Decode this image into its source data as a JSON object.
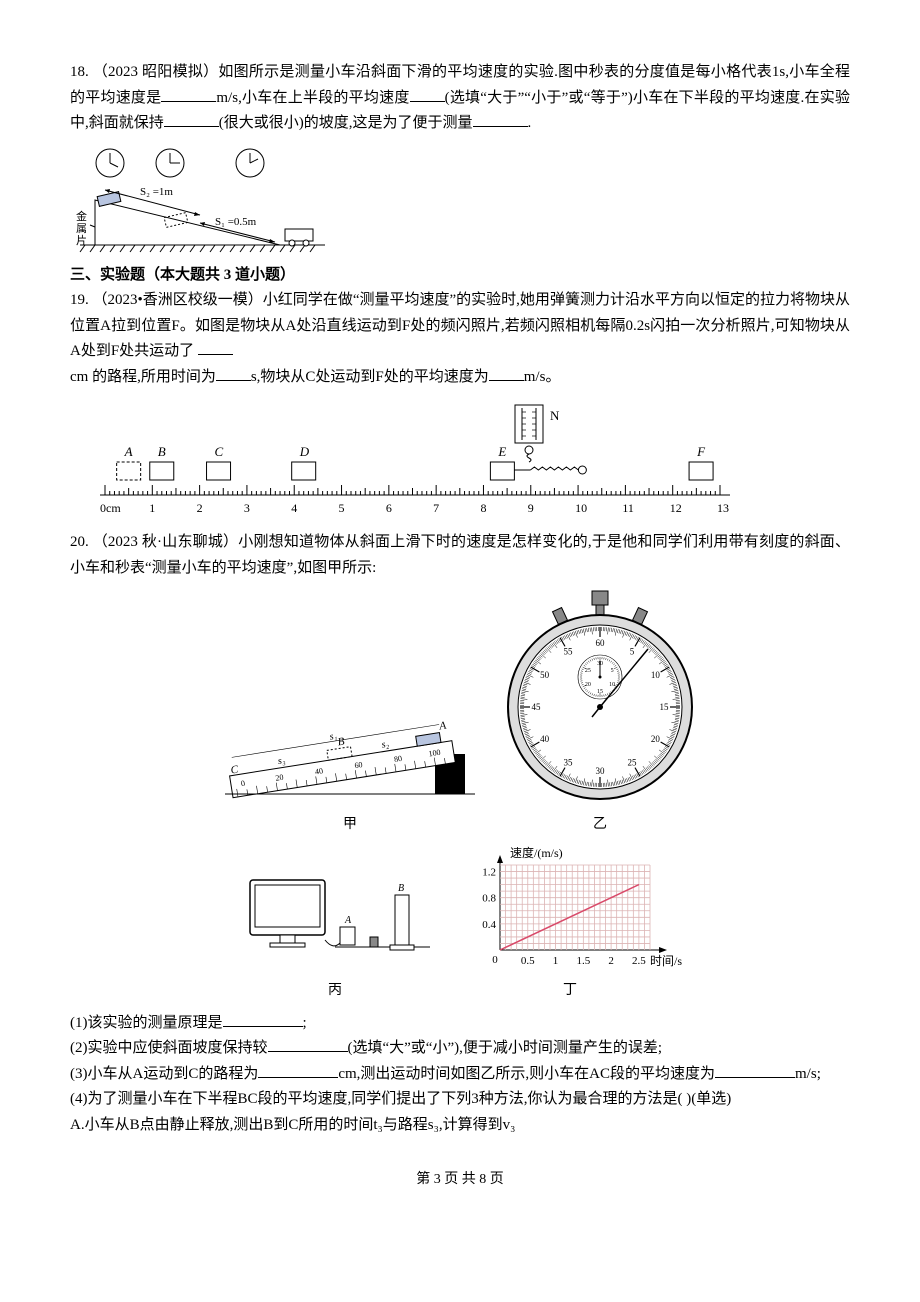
{
  "q18": {
    "num": "18. ",
    "text_a": "（2023 昭阳模拟）如图所示是测量小车沿斜面下滑的平均速度的实验.图中秒表的分度值是每小格代表1s,小车全程的平均速度是",
    "unit1": "m/s,小车在上半段的平均速度",
    "text_b": "(选填“大于”“小于”或“等于”)小车在下半段的平均速度.在实验中,斜面就保持",
    "text_c": "(很大或很小)的坡度,这是为了便于测量",
    "text_d": ".",
    "fig": {
      "s2": "S₂ =1m",
      "s1": "S₁ =0.5m",
      "label": "金属片",
      "clock_times": [
        "10:10",
        "10:15",
        "10:19"
      ],
      "colors": {
        "line": "#000000",
        "hatch": "#000000",
        "carfill": "#b8c5e0"
      }
    }
  },
  "section3": "三、实验题（本大题共 3 道小题）",
  "q19": {
    "num": "19. ",
    "text_a": "（2023•香洲区校级一模）小红同学在做“测量平均速度”的实验时,她用弹簧测力计沿水平方向以恒定的拉力将物块从位置A拉到位置F。如图是物块从A处沿直线运动到F处的频闪照片,若频闪照相机每隔0.2s闪拍一次分析照片,可知物块从A处到F处共运动了 ",
    "text_b": "cm 的路程,所用时间为",
    "text_c": "s,物块从C处运动到F处的平均速度为",
    "text_d": "m/s。",
    "fig": {
      "labels": [
        "A",
        "B",
        "C",
        "D",
        "E",
        "F"
      ],
      "positions": [
        0.5,
        1.2,
        2.4,
        4.2,
        8.4,
        12.6
      ],
      "scale_start": 0,
      "scale_end": 13,
      "scale_label": "0cm",
      "dyn_label": "N"
    }
  },
  "q20": {
    "num": "20. ",
    "text_a": "（2023 秋·山东聊城）小刚想知道物体从斜面上滑下时的速度是怎样变化的,于是他和同学们利用带有刻度的斜面、小车和秒表“测量小车的平均速度”,如图甲所示:",
    "fig": {
      "labels": {
        "ruler_car": "甲",
        "stopwatch": "乙",
        "computer": "丙",
        "graph": "丁"
      },
      "ruler": {
        "s1": "s₁",
        "s2": "s₂",
        "s3": "s₃",
        "A": "A",
        "B": "B",
        "C": "C"
      },
      "stopwatch": {
        "ticks_major": [
          5,
          10,
          15,
          20,
          25,
          30,
          35,
          40,
          45,
          50,
          55,
          60
        ],
        "inner_ticks": [
          5,
          10,
          15,
          20,
          25,
          30
        ],
        "main_hand_sec": 10,
        "color_tick": "#000000",
        "color_hand": "#000000",
        "color_face": "#ffffff"
      },
      "graph": {
        "xlabel": "时间/s",
        "ylabel": "速度/(m/s)",
        "xticks": [
          0,
          0.5,
          1,
          1.5,
          2,
          2.5
        ],
        "yticks": [
          0,
          0.4,
          0.8,
          1.2
        ],
        "xlim": [
          0,
          2.7
        ],
        "ylim": [
          0,
          1.3
        ],
        "line_color": "#d94a6a",
        "grid_color": "#dcb4b4",
        "axis_color": "#000000",
        "line_points": [
          [
            0,
            0
          ],
          [
            2.5,
            1.0
          ]
        ]
      }
    },
    "sub1": "(1)该实验的测量原理是",
    "sub1_end": ";",
    "sub2": "(2)实验中应使斜面坡度保持较",
    "sub2_mid": "(选填“大”或“小”),便于减小时间测量产生的误差;",
    "sub3": "(3)小车从A运动到C的路程为",
    "sub3_mid": "cm,测出运动时间如图乙所示,则小车在AC段的平均速度为",
    "sub3_end": "m/s;",
    "sub4": "(4)为了测量小车在下半程BC段的平均速度,同学们提出了下列3种方法,你认为最合理的方法是(        )(单选)",
    "optA": "A.小车从B点由静止释放,测出B到C所用的时间t₃与路程s₃,计算得到v₃"
  },
  "footer": "第 3 页 共 8 页"
}
